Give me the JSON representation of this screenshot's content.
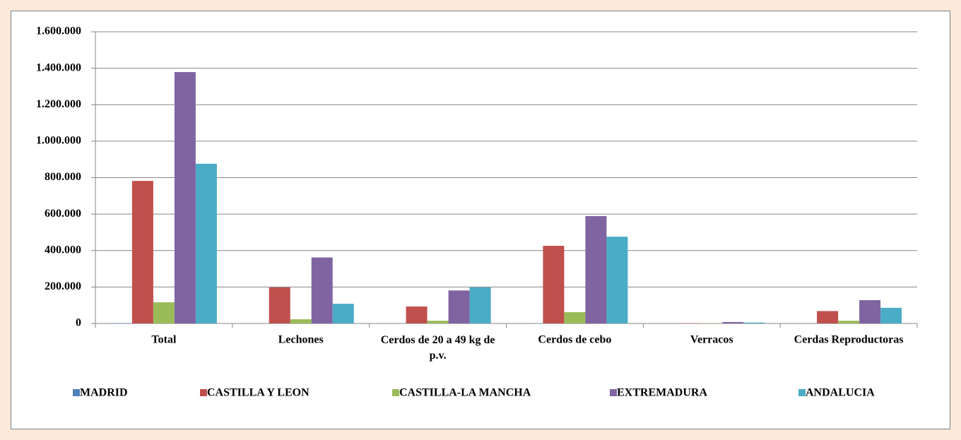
{
  "chart_data": {
    "type": "bar",
    "categories": [
      "Total",
      "Lechones",
      "Cerdos de 20 a 49 kg de p.v.",
      "Cerdos de cebo",
      "Verracos",
      "Cerdas Reproductoras"
    ],
    "series": [
      {
        "name": "MADRID",
        "color": "#4f81bd",
        "values": [
          1500,
          300,
          200,
          800,
          20,
          150
        ]
      },
      {
        "name": "CASTILLA Y LEON",
        "color": "#c0504d",
        "values": [
          782000,
          198000,
          93000,
          426000,
          1500,
          68000
        ]
      },
      {
        "name": "CASTILLA-LA MANCHA",
        "color": "#9bbb59",
        "values": [
          116000,
          23000,
          15000,
          62000,
          1000,
          15000
        ]
      },
      {
        "name": "EXTREMADURA",
        "color": "#8064a2",
        "values": [
          1379000,
          362000,
          181000,
          589000,
          8000,
          128000
        ]
      },
      {
        "name": "ANDALUCIA",
        "color": "#4bacc6",
        "values": [
          876000,
          108000,
          198000,
          476000,
          5000,
          86000
        ]
      }
    ],
    "ylim": [
      0,
      1600000
    ],
    "yticks": [
      0,
      {
        "value": 200000,
        "label": "200.000"
      },
      {
        "value": 400000,
        "label": "400.000"
      },
      {
        "value": 600000,
        "label": "600.000"
      },
      {
        "value": 800000,
        "label": "800.000"
      },
      {
        "value": 1000000,
        "label": "1.000.000"
      },
      {
        "value": 1200000,
        "label": "1.200.000"
      },
      {
        "value": 1400000,
        "label": "1.400.000"
      },
      {
        "value": 1600000,
        "label": "1.600.000"
      }
    ],
    "grid": true,
    "legend": "bottom"
  }
}
